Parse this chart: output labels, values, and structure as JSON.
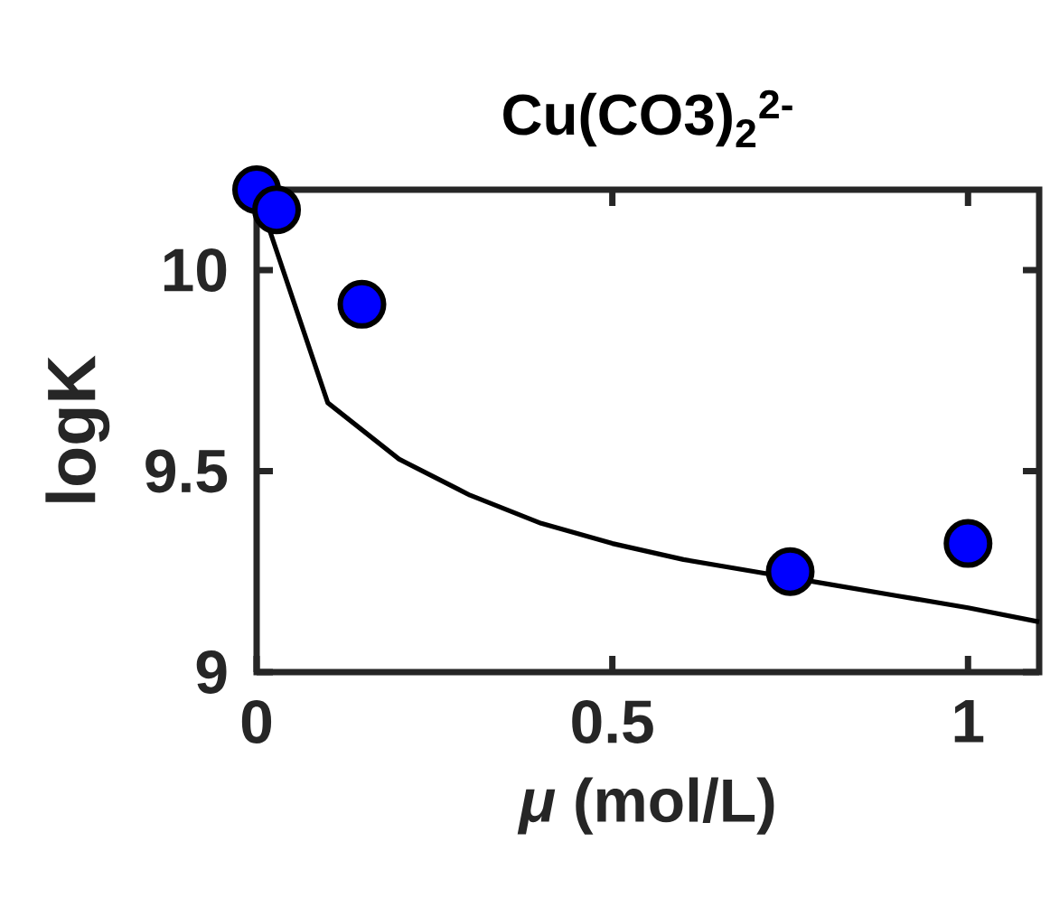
{
  "chart_data": {
    "type": "scatter",
    "title": "Cu(CO3)$_{2}$$^{2-}$",
    "xlabel": "*μ* (mol/L)",
    "ylabel": "logK",
    "xlim": [
      0,
      1.1
    ],
    "ylim": [
      9,
      10.2
    ],
    "xticks": [
      0,
      0.5,
      1
    ],
    "yticks": [
      9,
      9.5,
      10
    ],
    "grid": false,
    "series": [
      {
        "type": "line",
        "color": "#000000",
        "x": [
          0.001,
          0.1,
          0.2,
          0.3,
          0.4,
          0.5,
          0.6,
          0.7,
          0.8,
          0.9,
          1.0,
          1.1
        ],
        "values": [
          10.19,
          9.67,
          9.53,
          9.44,
          9.37,
          9.32,
          9.28,
          9.25,
          9.22,
          9.19,
          9.16,
          9.125
        ]
      },
      {
        "color": "#0000ff",
        "x": [
          0,
          0.028,
          0.148,
          0.75,
          1.0
        ],
        "values": [
          10.2,
          10.15,
          9.915,
          9.25,
          9.32
        ]
      }
    ]
  }
}
